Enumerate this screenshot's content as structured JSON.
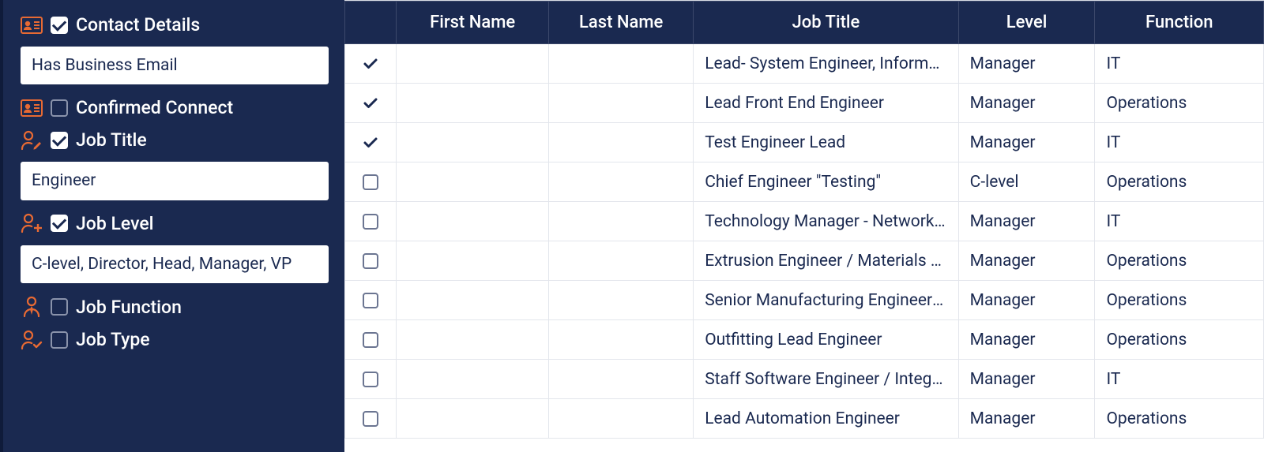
{
  "colors": {
    "sidebar_bg": "#1a2950",
    "accent": "#e86a33",
    "table_header_bg": "#1a2950",
    "table_border": "#e3e6ec",
    "text_dark": "#1a2950",
    "checkbox_border": "#8a93ab"
  },
  "sidebar": {
    "filters": [
      {
        "key": "contact_details",
        "icon": "contact-card",
        "label": "Contact Details",
        "checked": true,
        "value": "Has Business Email"
      },
      {
        "key": "confirmed_connect",
        "icon": "contact-card",
        "label": "Confirmed Connect",
        "checked": false
      },
      {
        "key": "job_title",
        "icon": "person-edit",
        "label": "Job Title",
        "checked": true,
        "value": "Engineer"
      },
      {
        "key": "job_level",
        "icon": "person-plus",
        "label": "Job Level",
        "checked": true,
        "value": "C-level, Director, Head, Manager, VP"
      },
      {
        "key": "job_function",
        "icon": "person-tie",
        "label": "Job Function",
        "checked": false
      },
      {
        "key": "job_type",
        "icon": "person-check",
        "label": "Job Type",
        "checked": false
      }
    ]
  },
  "table": {
    "columns": [
      "",
      "First Name",
      "Last Name",
      "Job Title",
      "Level",
      "Function"
    ],
    "rows": [
      {
        "selected": true,
        "first_name": "",
        "last_name": "",
        "job_title": "Lead- System Engineer, Informati…",
        "level": "Manager",
        "function": "IT"
      },
      {
        "selected": true,
        "first_name": "",
        "last_name": "",
        "job_title": "Lead Front End Engineer",
        "level": "Manager",
        "function": "Operations"
      },
      {
        "selected": true,
        "first_name": "",
        "last_name": "",
        "job_title": "Test Engineer Lead",
        "level": "Manager",
        "function": "IT"
      },
      {
        "selected": false,
        "first_name": "",
        "last_name": "",
        "job_title": "Chief Engineer \"Testing\"",
        "level": "C-level",
        "function": "Operations"
      },
      {
        "selected": false,
        "first_name": "",
        "last_name": "",
        "job_title": "Technology Manager - Network &…",
        "level": "Manager",
        "function": "IT"
      },
      {
        "selected": false,
        "first_name": "",
        "last_name": "",
        "job_title": "Extrusion Engineer / Materials Off…",
        "level": "Manager",
        "function": "Operations"
      },
      {
        "selected": false,
        "first_name": "",
        "last_name": "",
        "job_title": "Senior Manufacturing Engineer - I…",
        "level": "Manager",
        "function": "Operations"
      },
      {
        "selected": false,
        "first_name": "",
        "last_name": "",
        "job_title": "Outfitting Lead Engineer",
        "level": "Manager",
        "function": "Operations"
      },
      {
        "selected": false,
        "first_name": "",
        "last_name": "",
        "job_title": "Staff Software Engineer / Integrat…",
        "level": "Manager",
        "function": "IT"
      },
      {
        "selected": false,
        "first_name": "",
        "last_name": "",
        "job_title": "Lead Automation Engineer",
        "level": "Manager",
        "function": "Operations"
      }
    ]
  }
}
